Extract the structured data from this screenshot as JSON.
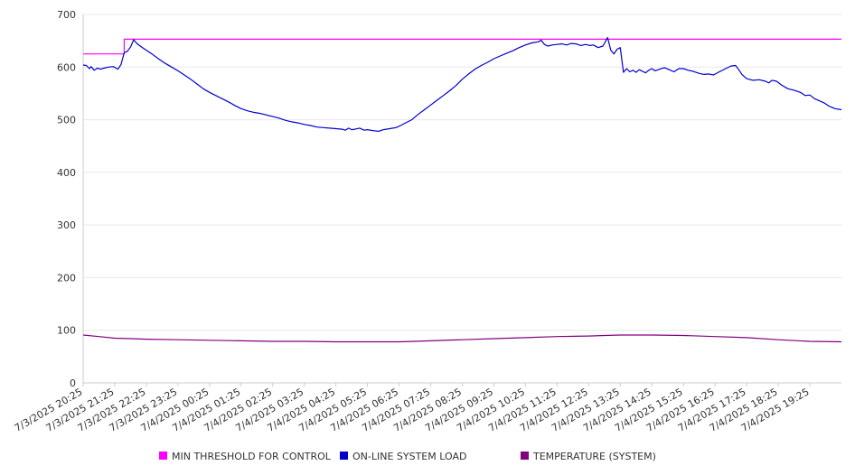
{
  "chart_data": {
    "type": "line",
    "title": "",
    "xlabel": "",
    "ylabel": "",
    "ylim": [
      0,
      700
    ],
    "y_ticks": [
      0,
      100,
      200,
      300,
      400,
      500,
      600,
      700
    ],
    "x_tick_labels": [
      "7/3/2025 20:25",
      "7/3/2025 21:25",
      "7/3/2025 22:25",
      "7/3/2025 23:25",
      "7/4/2025 00:25",
      "7/4/2025 01:25",
      "7/4/2025 02:25",
      "7/4/2025 03:25",
      "7/4/2025 04:25",
      "7/4/2025 05:25",
      "7/4/2025 06:25",
      "7/4/2025 07:25",
      "7/4/2025 08:25",
      "7/4/2025 09:25",
      "7/4/2025 10:25",
      "7/4/2025 11:25",
      "7/4/2025 12:25",
      "7/4/2025 13:25",
      "7/4/2025 14:25",
      "7/4/2025 15:25",
      "7/4/2025 16:25",
      "7/4/2025 17:25",
      "7/4/2025 18:25",
      "7/4/2025 19:25"
    ],
    "x_range_hours": [
      0,
      24
    ],
    "grid": true,
    "legend_position": "bottom",
    "series": [
      {
        "name": "MIN THRESHOLD FOR CONTROL",
        "color": "#FF00FF",
        "points": [
          [
            0,
            625
          ],
          [
            1.3,
            625
          ],
          [
            1.3,
            653
          ],
          [
            24,
            653
          ]
        ]
      },
      {
        "name": "ON-LINE SYSTEM LOAD",
        "color": "#0000CC",
        "points": [
          [
            0,
            604
          ],
          [
            0.1,
            603
          ],
          [
            0.2,
            597
          ],
          [
            0.25,
            601
          ],
          [
            0.35,
            594
          ],
          [
            0.45,
            598
          ],
          [
            0.55,
            596
          ],
          [
            0.65,
            598
          ],
          [
            0.8,
            600
          ],
          [
            0.95,
            601
          ],
          [
            1.1,
            596
          ],
          [
            1.2,
            605
          ],
          [
            1.3,
            627
          ],
          [
            1.4,
            630
          ],
          [
            1.5,
            638
          ],
          [
            1.6,
            652
          ],
          [
            1.7,
            645
          ],
          [
            1.85,
            638
          ],
          [
            2.0,
            632
          ],
          [
            2.2,
            624
          ],
          [
            2.4,
            615
          ],
          [
            2.6,
            607
          ],
          [
            2.8,
            600
          ],
          [
            3.0,
            593
          ],
          [
            3.2,
            585
          ],
          [
            3.4,
            577
          ],
          [
            3.6,
            568
          ],
          [
            3.8,
            559
          ],
          [
            4.0,
            552
          ],
          [
            4.2,
            546
          ],
          [
            4.4,
            540
          ],
          [
            4.6,
            534
          ],
          [
            4.8,
            527
          ],
          [
            5.0,
            521
          ],
          [
            5.2,
            517
          ],
          [
            5.4,
            514
          ],
          [
            5.6,
            512
          ],
          [
            5.8,
            509
          ],
          [
            6.0,
            506
          ],
          [
            6.2,
            503
          ],
          [
            6.4,
            499
          ],
          [
            6.6,
            496
          ],
          [
            6.8,
            494
          ],
          [
            7.0,
            491
          ],
          [
            7.2,
            489
          ],
          [
            7.4,
            486
          ],
          [
            7.6,
            485
          ],
          [
            7.8,
            484
          ],
          [
            8.0,
            483
          ],
          [
            8.2,
            482
          ],
          [
            8.3,
            480
          ],
          [
            8.4,
            484
          ],
          [
            8.5,
            481
          ],
          [
            8.6,
            482
          ],
          [
            8.75,
            484
          ],
          [
            8.9,
            480
          ],
          [
            9.0,
            481
          ],
          [
            9.2,
            479
          ],
          [
            9.35,
            478
          ],
          [
            9.5,
            481
          ],
          [
            9.7,
            483
          ],
          [
            9.9,
            485
          ],
          [
            10.05,
            489
          ],
          [
            10.2,
            494
          ],
          [
            10.4,
            500
          ],
          [
            10.6,
            510
          ],
          [
            10.8,
            519
          ],
          [
            11.0,
            528
          ],
          [
            11.2,
            537
          ],
          [
            11.4,
            546
          ],
          [
            11.6,
            555
          ],
          [
            11.8,
            565
          ],
          [
            12.0,
            577
          ],
          [
            12.2,
            587
          ],
          [
            12.4,
            596
          ],
          [
            12.6,
            603
          ],
          [
            12.8,
            609
          ],
          [
            13.0,
            616
          ],
          [
            13.2,
            621
          ],
          [
            13.4,
            626
          ],
          [
            13.6,
            631
          ],
          [
            13.8,
            637
          ],
          [
            14.0,
            642
          ],
          [
            14.2,
            646
          ],
          [
            14.4,
            648
          ],
          [
            14.5,
            651
          ],
          [
            14.6,
            643
          ],
          [
            14.7,
            640
          ],
          [
            14.85,
            642
          ],
          [
            15.0,
            643
          ],
          [
            15.15,
            644
          ],
          [
            15.3,
            642
          ],
          [
            15.45,
            645
          ],
          [
            15.6,
            644
          ],
          [
            15.75,
            641
          ],
          [
            15.9,
            643
          ],
          [
            16.05,
            641
          ],
          [
            16.15,
            642
          ],
          [
            16.3,
            637
          ],
          [
            16.45,
            640
          ],
          [
            16.6,
            656
          ],
          [
            16.7,
            632
          ],
          [
            16.8,
            625
          ],
          [
            16.9,
            634
          ],
          [
            17.0,
            637
          ],
          [
            17.1,
            590
          ],
          [
            17.2,
            597
          ],
          [
            17.3,
            591
          ],
          [
            17.4,
            594
          ],
          [
            17.5,
            590
          ],
          [
            17.6,
            595
          ],
          [
            17.7,
            592
          ],
          [
            17.8,
            589
          ],
          [
            17.9,
            594
          ],
          [
            18.0,
            597
          ],
          [
            18.1,
            593
          ],
          [
            18.25,
            596
          ],
          [
            18.4,
            599
          ],
          [
            18.55,
            595
          ],
          [
            18.7,
            591
          ],
          [
            18.85,
            597
          ],
          [
            19.0,
            597
          ],
          [
            19.15,
            594
          ],
          [
            19.3,
            592
          ],
          [
            19.5,
            588
          ],
          [
            19.65,
            586
          ],
          [
            19.8,
            587
          ],
          [
            19.95,
            585
          ],
          [
            20.1,
            590
          ],
          [
            20.3,
            596
          ],
          [
            20.5,
            602
          ],
          [
            20.65,
            603
          ],
          [
            20.75,
            595
          ],
          [
            20.85,
            586
          ],
          [
            21.0,
            578
          ],
          [
            21.2,
            575
          ],
          [
            21.4,
            576
          ],
          [
            21.6,
            573
          ],
          [
            21.7,
            570
          ],
          [
            21.8,
            575
          ],
          [
            21.95,
            573
          ],
          [
            22.1,
            566
          ],
          [
            22.3,
            559
          ],
          [
            22.5,
            556
          ],
          [
            22.7,
            552
          ],
          [
            22.85,
            546
          ],
          [
            23.0,
            547
          ],
          [
            23.15,
            540
          ],
          [
            23.3,
            536
          ],
          [
            23.45,
            532
          ],
          [
            23.6,
            526
          ],
          [
            23.8,
            521
          ],
          [
            24.0,
            519
          ]
        ]
      },
      {
        "name": "TEMPERATURE (SYSTEM)",
        "color": "#800080",
        "points": [
          [
            0,
            91
          ],
          [
            0.5,
            88
          ],
          [
            1.0,
            85
          ],
          [
            1.5,
            84
          ],
          [
            2.0,
            83
          ],
          [
            3.0,
            82
          ],
          [
            4.0,
            81
          ],
          [
            5.0,
            80
          ],
          [
            6.0,
            79
          ],
          [
            7.0,
            79
          ],
          [
            8.0,
            78
          ],
          [
            9.0,
            78
          ],
          [
            10.0,
            78
          ],
          [
            10.5,
            79
          ],
          [
            11.0,
            80
          ],
          [
            12.0,
            82
          ],
          [
            13.0,
            84
          ],
          [
            14.0,
            86
          ],
          [
            15.0,
            88
          ],
          [
            16.0,
            89
          ],
          [
            16.5,
            90
          ],
          [
            17.0,
            91
          ],
          [
            18.0,
            91
          ],
          [
            19.0,
            90
          ],
          [
            20.0,
            88
          ],
          [
            21.0,
            86
          ],
          [
            22.0,
            82
          ],
          [
            23.0,
            79
          ],
          [
            24.0,
            78
          ]
        ]
      }
    ]
  }
}
